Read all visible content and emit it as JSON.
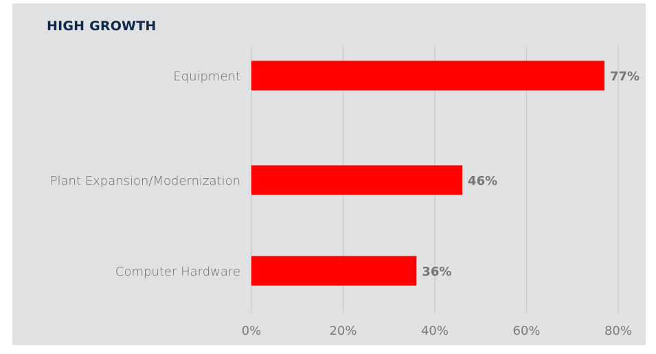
{
  "chart_data": {
    "type": "bar",
    "orientation": "horizontal",
    "title": "HIGH GROWTH",
    "categories": [
      "Equipment",
      "Plant Expansion/Modernization",
      "Computer Hardware"
    ],
    "values": [
      77,
      46,
      36
    ],
    "data_labels": [
      "77%",
      "46%",
      "36%"
    ],
    "x_ticks": [
      0,
      20,
      40,
      60,
      80
    ],
    "x_tick_labels": [
      "0%",
      "20%",
      "40%",
      "60%",
      "80%"
    ],
    "xlim": [
      0,
      80
    ],
    "xlabel": "",
    "ylabel": "",
    "grid": "vertical",
    "legend": "none",
    "colors": {
      "bar": "#fe0000",
      "panel_background": "#e0e1e2",
      "title": "#10284a"
    }
  }
}
